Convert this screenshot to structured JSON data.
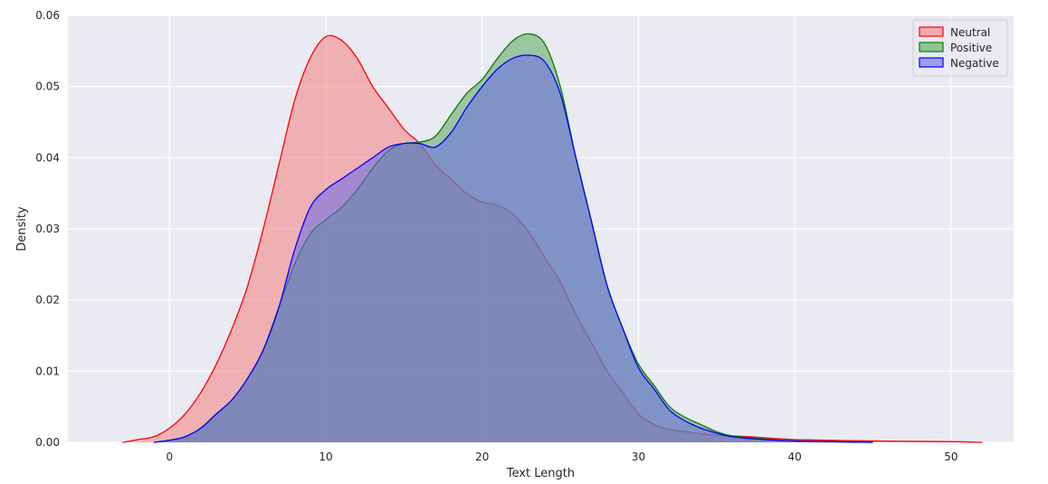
{
  "chart_data": {
    "type": "area",
    "title": "",
    "xlabel": "Text Length",
    "ylabel": "Density",
    "xlim": [
      -6.5,
      54
    ],
    "ylim": [
      0,
      0.06
    ],
    "xticks": [
      0,
      10,
      20,
      30,
      40,
      50
    ],
    "yticks": [
      0.0,
      0.01,
      0.02,
      0.03,
      0.04,
      0.05,
      0.06
    ],
    "grid": true,
    "legend": "top-right",
    "series": [
      {
        "name": "Neutral",
        "color": "#ff0000",
        "fill": "#f08080",
        "points": [
          [
            -3,
            0
          ],
          [
            -2,
            0.0004
          ],
          [
            -1,
            0.0008
          ],
          [
            0,
            0.002
          ],
          [
            1,
            0.004
          ],
          [
            2,
            0.007
          ],
          [
            3,
            0.011
          ],
          [
            4,
            0.016
          ],
          [
            5,
            0.022
          ],
          [
            6,
            0.03
          ],
          [
            7,
            0.039
          ],
          [
            8,
            0.048
          ],
          [
            9,
            0.054
          ],
          [
            10,
            0.057
          ],
          [
            11,
            0.0565
          ],
          [
            12,
            0.054
          ],
          [
            13,
            0.05
          ],
          [
            14,
            0.047
          ],
          [
            15,
            0.044
          ],
          [
            16,
            0.042
          ],
          [
            17,
            0.039
          ],
          [
            18,
            0.037
          ],
          [
            19,
            0.035
          ],
          [
            20,
            0.0338
          ],
          [
            21,
            0.0333
          ],
          [
            22,
            0.032
          ],
          [
            23,
            0.0295
          ],
          [
            24,
            0.026
          ],
          [
            25,
            0.0225
          ],
          [
            26,
            0.018
          ],
          [
            27,
            0.014
          ],
          [
            28,
            0.01
          ],
          [
            29,
            0.007
          ],
          [
            30,
            0.004
          ],
          [
            31,
            0.0025
          ],
          [
            32,
            0.0018
          ],
          [
            33,
            0.0015
          ],
          [
            34,
            0.0012
          ],
          [
            35,
            0.001
          ],
          [
            37,
            0.0008
          ],
          [
            40,
            0.0004
          ],
          [
            45,
            0.0002
          ],
          [
            50,
            0.0001
          ],
          [
            52,
            0
          ]
        ]
      },
      {
        "name": "Positive",
        "color": "#008000",
        "fill": "#5aa65a",
        "points": [
          [
            -1,
            0
          ],
          [
            0,
            0.0003
          ],
          [
            1,
            0.0008
          ],
          [
            2,
            0.002
          ],
          [
            3,
            0.004
          ],
          [
            4,
            0.006
          ],
          [
            5,
            0.009
          ],
          [
            6,
            0.013
          ],
          [
            7,
            0.019
          ],
          [
            8,
            0.025
          ],
          [
            9,
            0.0293
          ],
          [
            10,
            0.0313
          ],
          [
            11,
            0.033
          ],
          [
            12,
            0.0355
          ],
          [
            13,
            0.0385
          ],
          [
            14,
            0.041
          ],
          [
            15,
            0.042
          ],
          [
            16,
            0.0422
          ],
          [
            17,
            0.043
          ],
          [
            18,
            0.046
          ],
          [
            19,
            0.049
          ],
          [
            20,
            0.051
          ],
          [
            21,
            0.054
          ],
          [
            22,
            0.0565
          ],
          [
            23,
            0.0574
          ],
          [
            24,
            0.056
          ],
          [
            25,
            0.05
          ],
          [
            26,
            0.04
          ],
          [
            27,
            0.031
          ],
          [
            28,
            0.022
          ],
          [
            29,
            0.016
          ],
          [
            30,
            0.011
          ],
          [
            31,
            0.008
          ],
          [
            32,
            0.005
          ],
          [
            33,
            0.0035
          ],
          [
            34,
            0.0025
          ],
          [
            35,
            0.0015
          ],
          [
            36,
            0.0009
          ],
          [
            38,
            0.0005
          ],
          [
            40,
            0.0002
          ],
          [
            42,
            0.0001
          ],
          [
            45,
            0
          ]
        ]
      },
      {
        "name": "Negative",
        "color": "#0000ff",
        "fill": "#6a6ae8",
        "points": [
          [
            -1,
            0
          ],
          [
            0,
            0.0003
          ],
          [
            1,
            0.0008
          ],
          [
            2,
            0.002
          ],
          [
            3,
            0.004
          ],
          [
            4,
            0.006
          ],
          [
            5,
            0.009
          ],
          [
            6,
            0.013
          ],
          [
            7,
            0.019
          ],
          [
            8,
            0.027
          ],
          [
            9,
            0.033
          ],
          [
            10,
            0.0355
          ],
          [
            11,
            0.037
          ],
          [
            12,
            0.0385
          ],
          [
            13,
            0.04
          ],
          [
            14,
            0.0415
          ],
          [
            15,
            0.042
          ],
          [
            16,
            0.042
          ],
          [
            17,
            0.0415
          ],
          [
            18,
            0.0435
          ],
          [
            19,
            0.047
          ],
          [
            20,
            0.05
          ],
          [
            21,
            0.0525
          ],
          [
            22,
            0.054
          ],
          [
            23,
            0.0544
          ],
          [
            24,
            0.0535
          ],
          [
            25,
            0.049
          ],
          [
            26,
            0.04
          ],
          [
            27,
            0.031
          ],
          [
            28,
            0.022
          ],
          [
            29,
            0.016
          ],
          [
            30,
            0.0105
          ],
          [
            31,
            0.0075
          ],
          [
            32,
            0.0045
          ],
          [
            33,
            0.003
          ],
          [
            34,
            0.002
          ],
          [
            35,
            0.0013
          ],
          [
            36,
            0.0008
          ],
          [
            38,
            0.0004
          ],
          [
            40,
            0.0002
          ],
          [
            42,
            0.0001
          ],
          [
            45,
            0
          ]
        ]
      }
    ]
  }
}
